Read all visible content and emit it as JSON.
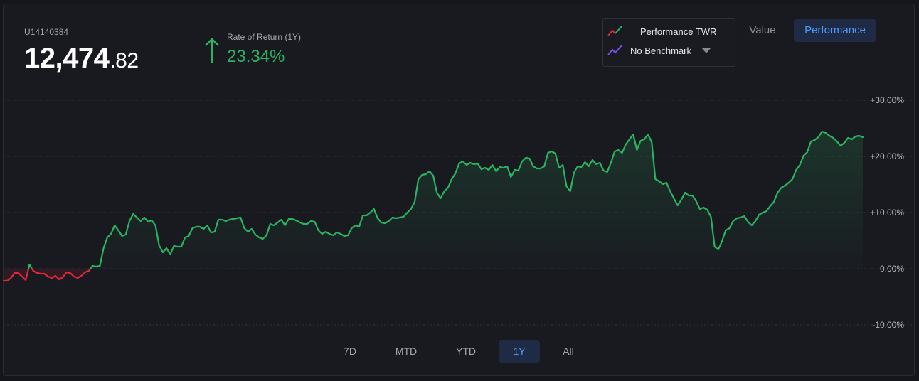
{
  "account": {
    "id": "U14140384",
    "value_main": "12,474",
    "value_cents": ".82"
  },
  "rate_of_return": {
    "label": "Rate of Return (1Y)",
    "value": "23.34%",
    "color": "#2bb45f"
  },
  "legend": {
    "series_label": "Performance TWR",
    "benchmark_label": "No Benchmark"
  },
  "view_toggle": {
    "value_label": "Value",
    "performance_label": "Performance",
    "active": "Performance"
  },
  "ranges": {
    "items": [
      "7D",
      "MTD",
      "YTD",
      "1Y",
      "All"
    ],
    "active": "1Y"
  },
  "colors": {
    "positive": "#2bb45f",
    "negative": "#e0283a",
    "accent": "#4b9bff"
  },
  "chart_data": {
    "type": "line",
    "series": [
      {
        "name": "Performance TWR",
        "x": [],
        "values": []
      }
    ],
    "ylim": [
      -10,
      30
    ],
    "yticks": [
      30,
      20,
      10,
      0,
      -10
    ],
    "ytick_labels": [
      "+30.00%",
      "+20.00%",
      "+10.00%",
      "0.00%",
      "-10.00%"
    ],
    "grid": true,
    "grid_style": "dashed",
    "area_fill": true
  }
}
